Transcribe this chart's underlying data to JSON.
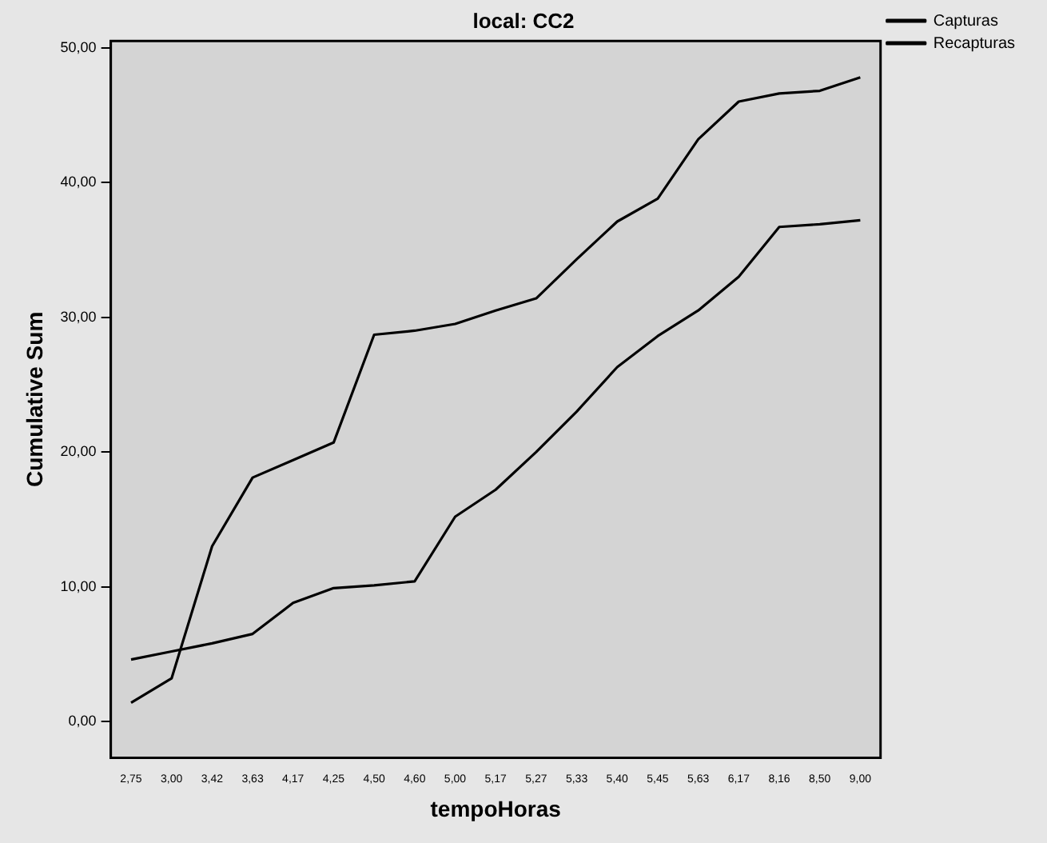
{
  "chart_data": {
    "type": "line",
    "title": "local: CC2",
    "xlabel": "tempoHoras",
    "ylabel": "Cumulative Sum",
    "categories": [
      "2,75",
      "3,00",
      "3,42",
      "3,63",
      "4,17",
      "4,25",
      "4,50",
      "4,60",
      "5,00",
      "5,17",
      "5,27",
      "5,33",
      "5,40",
      "5,45",
      "5,63",
      "6,17",
      "8,16",
      "8,50",
      "9,00"
    ],
    "series": [
      {
        "name": "Capturas",
        "color": "#000000",
        "values": [
          1.4,
          3.2,
          13.0,
          18.1,
          19.4,
          20.7,
          28.7,
          29.0,
          29.5,
          30.5,
          31.4,
          34.3,
          37.1,
          38.8,
          43.2,
          46.0,
          46.6,
          46.8,
          47.8
        ]
      },
      {
        "name": "Recapturas",
        "color": "#000000",
        "values": [
          4.6,
          5.2,
          5.8,
          6.5,
          8.8,
          9.9,
          10.1,
          10.4,
          15.2,
          17.2,
          20.0,
          23.0,
          26.3,
          28.6,
          30.5,
          33.0,
          36.7,
          36.9,
          37.2
        ]
      }
    ],
    "ylim": [
      -2.7,
      50.5
    ],
    "yticks": [
      {
        "value": 0,
        "label": "0,00"
      },
      {
        "value": 10,
        "label": "10,00"
      },
      {
        "value": 20,
        "label": "20,00"
      },
      {
        "value": 30,
        "label": "30,00"
      },
      {
        "value": 40,
        "label": "40,00"
      },
      {
        "value": 50,
        "label": "50,00"
      }
    ],
    "grid": false,
    "legend": "top right",
    "marker": "none",
    "line_style": "solid"
  }
}
